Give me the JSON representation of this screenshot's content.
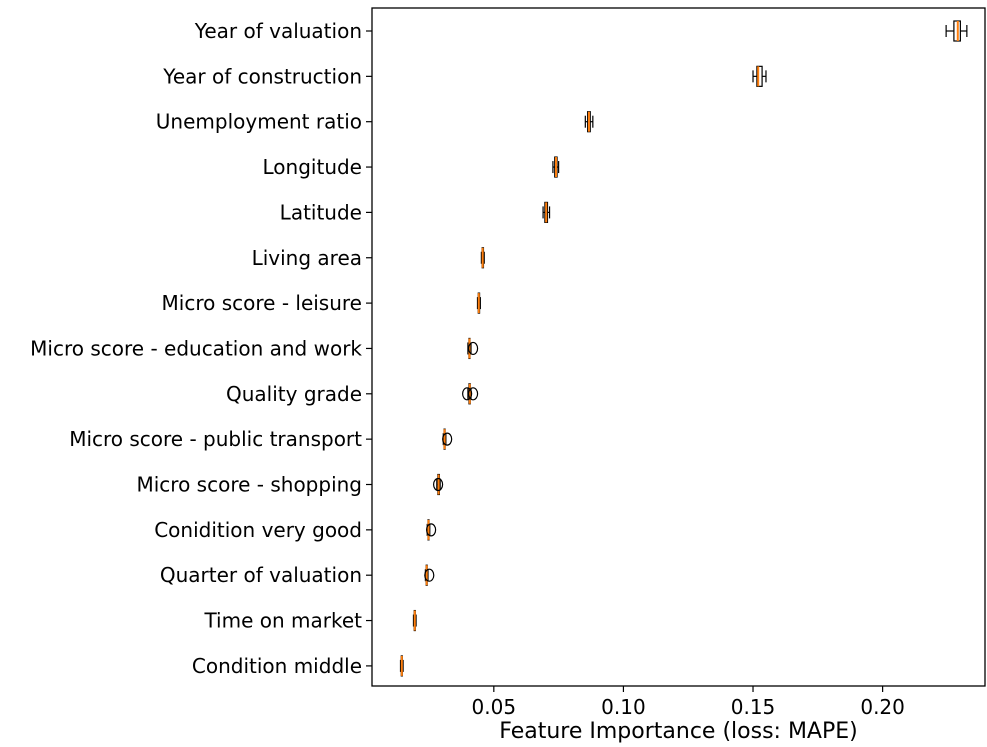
{
  "chart_data": {
    "type": "boxplot",
    "orientation": "horizontal",
    "xlabel": "Feature Importance (loss: MAPE)",
    "ylabel": "",
    "title": "",
    "xlim": [
      0.003,
      0.2395
    ],
    "xticks": [
      0.05,
      0.1,
      0.15,
      0.2
    ],
    "xtick_labels": [
      "0.05",
      "0.10",
      "0.15",
      "0.20"
    ],
    "grid": false,
    "legend": "none",
    "colors": {
      "box_edge": "#000000",
      "median": "#ff7f0e",
      "box_fill": "#ffffff",
      "axis": "#000000"
    },
    "categories": [
      "Year of valuation",
      "Year of construction",
      "Unemployment ratio",
      "Longitude",
      "Latitude",
      "Living area",
      "Micro score - leisure",
      "Micro score - education and work",
      "Quality grade",
      "Micro score - public transport",
      "Micro score - shopping",
      "Conidition very good",
      "Quarter of valuation",
      "Time on market",
      "Condition middle"
    ],
    "boxes": [
      {
        "whislo": 0.2245,
        "q1": 0.2275,
        "med": 0.229,
        "q3": 0.23,
        "whishi": 0.2325,
        "fliers": []
      },
      {
        "whislo": 0.15,
        "q1": 0.1515,
        "med": 0.152,
        "q3": 0.1535,
        "whishi": 0.155,
        "fliers": []
      },
      {
        "whislo": 0.0853,
        "q1": 0.0862,
        "med": 0.0867,
        "q3": 0.0872,
        "whishi": 0.0882,
        "fliers": []
      },
      {
        "whislo": 0.0728,
        "q1": 0.0735,
        "med": 0.074,
        "q3": 0.0744,
        "whishi": 0.075,
        "fliers": []
      },
      {
        "whislo": 0.069,
        "q1": 0.0697,
        "med": 0.0702,
        "q3": 0.0707,
        "whishi": 0.0715,
        "fliers": []
      },
      {
        "whislo": 0.0452,
        "q1": 0.0455,
        "med": 0.0457,
        "q3": 0.046,
        "whishi": 0.0463,
        "fliers": []
      },
      {
        "whislo": 0.0437,
        "q1": 0.044,
        "med": 0.0442,
        "q3": 0.0445,
        "whishi": 0.0448,
        "fliers": []
      },
      {
        "whislo": 0.04,
        "q1": 0.0404,
        "med": 0.0406,
        "q3": 0.0408,
        "whishi": 0.0412,
        "fliers": [
          0.042
        ]
      },
      {
        "whislo": 0.04,
        "q1": 0.0404,
        "med": 0.0407,
        "q3": 0.0409,
        "whishi": 0.0412,
        "fliers": [
          0.0397,
          0.042
        ]
      },
      {
        "whislo": 0.0305,
        "q1": 0.0308,
        "med": 0.031,
        "q3": 0.0312,
        "whishi": 0.0315,
        "fliers": [
          0.032
        ]
      },
      {
        "whislo": 0.028,
        "q1": 0.0284,
        "med": 0.0287,
        "q3": 0.029,
        "whishi": 0.0293,
        "fliers": [
          0.0285
        ]
      },
      {
        "whislo": 0.0243,
        "q1": 0.0246,
        "med": 0.0248,
        "q3": 0.025,
        "whishi": 0.0253,
        "fliers": [
          0.0258
        ]
      },
      {
        "whislo": 0.0236,
        "q1": 0.0239,
        "med": 0.0241,
        "q3": 0.0243,
        "whishi": 0.0246,
        "fliers": [
          0.0251
        ]
      },
      {
        "whislo": 0.019,
        "q1": 0.0193,
        "med": 0.0195,
        "q3": 0.0197,
        "whishi": 0.02,
        "fliers": []
      },
      {
        "whislo": 0.014,
        "q1": 0.0143,
        "med": 0.0145,
        "q3": 0.0147,
        "whishi": 0.015,
        "fliers": []
      }
    ]
  }
}
